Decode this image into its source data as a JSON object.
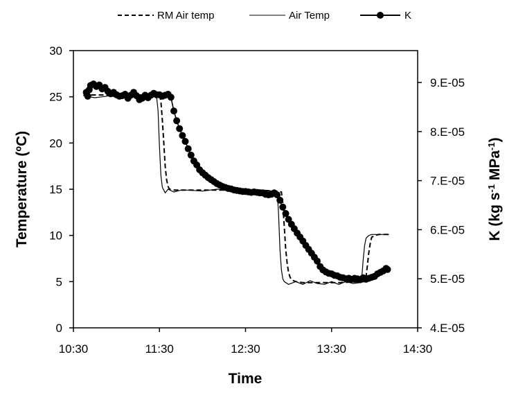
{
  "chart_data": {
    "type": "line",
    "title": "",
    "xlabel": "Time",
    "ylabel_left": "Temperature (ºC)",
    "ylabel_right_base": "K (kg s",
    "ylabel_right_sup1": "-1",
    "ylabel_right_mid": " MPa",
    "ylabel_right_sup2": "-1",
    "ylabel_right_end": ")",
    "xlim": [
      630,
      870
    ],
    "ylim_left": [
      0,
      30
    ],
    "ylim_right": [
      4e-05,
      9.65e-05
    ],
    "x_ticks": [
      {
        "value": 630,
        "label": "10:30"
      },
      {
        "value": 690,
        "label": "11:30"
      },
      {
        "value": 750,
        "label": "12:30"
      },
      {
        "value": 810,
        "label": "13:30"
      },
      {
        "value": 870,
        "label": "14:30"
      }
    ],
    "y_left_ticks": [
      {
        "value": 0,
        "label": "0"
      },
      {
        "value": 5,
        "label": "5"
      },
      {
        "value": 10,
        "label": "10"
      },
      {
        "value": 15,
        "label": "15"
      },
      {
        "value": 20,
        "label": "20"
      },
      {
        "value": 25,
        "label": "25"
      },
      {
        "value": 30,
        "label": "30"
      }
    ],
    "y_right_ticks": [
      {
        "value": 4e-05,
        "label": "4.E-05"
      },
      {
        "value": 5e-05,
        "label": "5.E-05"
      },
      {
        "value": 6e-05,
        "label": "6.E-05"
      },
      {
        "value": 7e-05,
        "label": "7.E-05"
      },
      {
        "value": 8e-05,
        "label": "8.E-05"
      },
      {
        "value": 9e-05,
        "label": "9.E-05"
      }
    ],
    "legend": {
      "position": "top",
      "entries": [
        "RM Air temp",
        "Air Temp",
        "K"
      ]
    },
    "series": [
      {
        "name": "RM Air temp",
        "axis": "left",
        "style": "dashed",
        "x": [
          637,
          690,
          691,
          692,
          693,
          694,
          695,
          696,
          697,
          700,
          705,
          715,
          730,
          745,
          760,
          770,
          775,
          776,
          777,
          778,
          779,
          780,
          781,
          782,
          785,
          790,
          800,
          815,
          833,
          834,
          835,
          836,
          837,
          838,
          840,
          843,
          850
        ],
        "y": [
          25.2,
          25.2,
          24.5,
          22.5,
          20.0,
          17.5,
          16.0,
          15.3,
          15.0,
          14.9,
          14.9,
          14.9,
          14.9,
          14.9,
          14.9,
          14.8,
          14.7,
          13.5,
          11.0,
          8.5,
          7.0,
          6.0,
          5.5,
          5.2,
          5.0,
          4.9,
          4.9,
          4.9,
          5.0,
          5.5,
          6.8,
          8.2,
          9.2,
          9.8,
          10.0,
          10.1,
          10.1
        ]
      },
      {
        "name": "Air Temp",
        "axis": "left",
        "style": "solid",
        "x": [
          637,
          645,
          655,
          665,
          675,
          685,
          688,
          689,
          690,
          691,
          692,
          693,
          694,
          696,
          700,
          705,
          710,
          720,
          730,
          740,
          750,
          760,
          770,
          772,
          773,
          774,
          775,
          776,
          777,
          780,
          785,
          790,
          795,
          800,
          805,
          810,
          815,
          820,
          825,
          830,
          831,
          832,
          833,
          834,
          836,
          838,
          845,
          850
        ],
        "y": [
          25.1,
          24.9,
          25.1,
          24.9,
          25.1,
          25.0,
          25.0,
          23.5,
          19.5,
          16.5,
          15.2,
          14.9,
          14.6,
          15.0,
          14.7,
          14.9,
          14.9,
          14.8,
          15.0,
          14.9,
          14.8,
          14.9,
          14.8,
          14.8,
          12.5,
          8.5,
          6.3,
          5.3,
          5.0,
          4.7,
          5.0,
          4.7,
          5.1,
          4.8,
          4.7,
          5.0,
          4.7,
          5.0,
          4.8,
          4.9,
          5.3,
          7.3,
          8.9,
          9.7,
          10.0,
          10.1,
          10.1,
          10.1
        ]
      },
      {
        "name": "K",
        "axis": "right",
        "style": "line-markers",
        "x": [
          639,
          640,
          641,
          642,
          644,
          646,
          648,
          650,
          652,
          654,
          656,
          658,
          660,
          662,
          664,
          666,
          668,
          670,
          672,
          674,
          676,
          678,
          680,
          682,
          684,
          686,
          688,
          690,
          692,
          694,
          696,
          698,
          700,
          702,
          704,
          706,
          708,
          710,
          712,
          714,
          716,
          718,
          720,
          722,
          724,
          726,
          728,
          730,
          732,
          734,
          736,
          738,
          740,
          742,
          744,
          746,
          748,
          750,
          752,
          754,
          756,
          758,
          760,
          762,
          764,
          766,
          768,
          770,
          772,
          774,
          776,
          778,
          780,
          782,
          784,
          786,
          788,
          790,
          792,
          794,
          796,
          798,
          800,
          802,
          804,
          806,
          808,
          810,
          812,
          814,
          816,
          818,
          820,
          822,
          824,
          826,
          828,
          830,
          832,
          834,
          836,
          838,
          840,
          842,
          844,
          846,
          848,
          849
        ],
        "y": [
          8.8e-05,
          8.72e-05,
          8.85e-05,
          8.94e-05,
          8.97e-05,
          8.92e-05,
          8.95e-05,
          8.87e-05,
          8.9e-05,
          8.82e-05,
          8.77e-05,
          8.8e-05,
          8.75e-05,
          8.72e-05,
          8.73e-05,
          8.76e-05,
          8.68e-05,
          8.74e-05,
          8.8e-05,
          8.73e-05,
          8.65e-05,
          8.68e-05,
          8.74e-05,
          8.69e-05,
          8.74e-05,
          8.78e-05,
          8.75e-05,
          8.75e-05,
          8.72e-05,
          8.74e-05,
          8.76e-05,
          8.7e-05,
          8.42e-05,
          8.22e-05,
          8.06e-05,
          7.92e-05,
          7.8e-05,
          7.65e-05,
          7.52e-05,
          7.4e-05,
          7.32e-05,
          7.22e-05,
          7.16e-05,
          7.11e-05,
          7.06e-05,
          7.02e-05,
          6.98e-05,
          6.94e-05,
          6.91e-05,
          6.88e-05,
          6.86e-05,
          6.84e-05,
          6.83e-05,
          6.81e-05,
          6.8e-05,
          6.79e-05,
          6.78e-05,
          6.78e-05,
          6.77e-05,
          6.76e-05,
          6.77e-05,
          6.76e-05,
          6.75e-05,
          6.75e-05,
          6.72e-05,
          6.71e-05,
          6.72e-05,
          6.75e-05,
          6.71e-05,
          6.6e-05,
          6.46e-05,
          6.33e-05,
          6.21e-05,
          6.11e-05,
          6.02e-05,
          5.93e-05,
          5.85e-05,
          5.77e-05,
          5.68e-05,
          5.6e-05,
          5.52e-05,
          5.44e-05,
          5.36e-05,
          5.25e-05,
          5.18e-05,
          5.14e-05,
          5.11e-05,
          5.1e-05,
          5.07e-05,
          5.06e-05,
          5.03e-05,
          5.02e-05,
          5e-05,
          5.01e-05,
          4.99e-05,
          5.01e-05,
          5e-05,
          4.98e-05,
          5.02e-05,
          4.99e-05,
          5.01e-05,
          5.03e-05,
          5.05e-05,
          5.1e-05,
          5.13e-05,
          5.16e-05,
          5.21e-05,
          5.19e-05
        ]
      }
    ],
    "colors": {
      "axis": "#000000",
      "series": "#000000",
      "background": "#ffffff"
    }
  }
}
